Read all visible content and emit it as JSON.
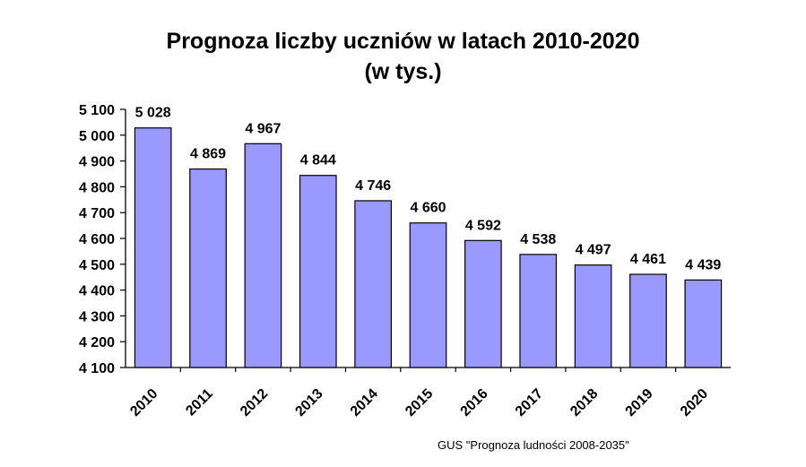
{
  "chart_data": {
    "type": "bar",
    "title": "Prognoza liczby uczniów w latach 2010-2020",
    "subtitle": "(w tys.)",
    "categories": [
      "2010",
      "2011",
      "2012",
      "2013",
      "2014",
      "2015",
      "2016",
      "2017",
      "2018",
      "2019",
      "2020"
    ],
    "values": [
      5028,
      4869,
      4967,
      4844,
      4746,
      4660,
      4592,
      4538,
      4497,
      4461,
      4439
    ],
    "value_labels": [
      "5 028",
      "4 869",
      "4 967",
      "4 844",
      "4 746",
      "4 660",
      "4 592",
      "4 538",
      "4 497",
      "4 461",
      "4 439"
    ],
    "ylim": [
      4100,
      5100
    ],
    "yticks": [
      4100,
      4200,
      4300,
      4400,
      4500,
      4600,
      4700,
      4800,
      4900,
      5000,
      5100
    ],
    "ytick_labels": [
      "4 100",
      "4 200",
      "4 300",
      "4 400",
      "4 500",
      "4 600",
      "4 700",
      "4 800",
      "4 900",
      "5 000",
      "5 100"
    ],
    "xlabel": "",
    "ylabel": "",
    "grid": false,
    "legend": "none",
    "bar_color": "#9999ff",
    "bar_edge_color": "#000000"
  },
  "source_note": "GUS \"Prognoza ludności 2008-2035\""
}
